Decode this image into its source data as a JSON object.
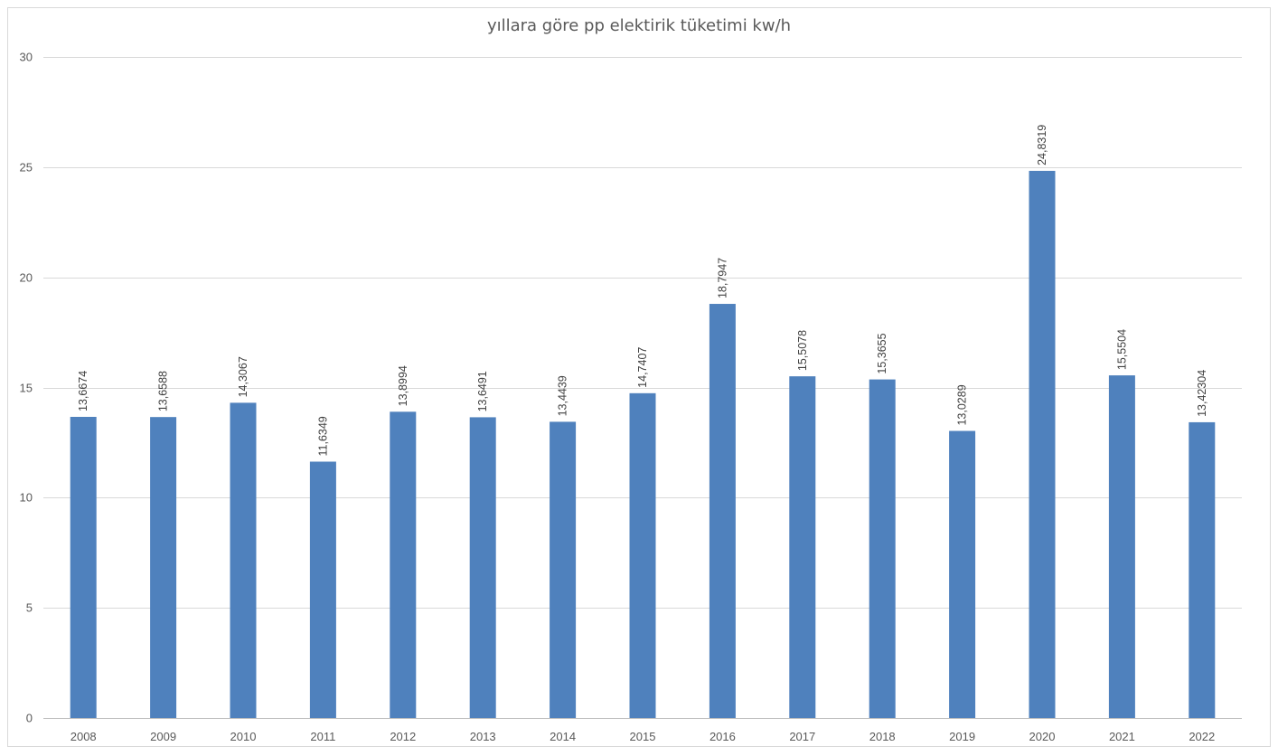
{
  "chart_data": {
    "type": "bar",
    "title": "yıllara göre pp elektirik tüketimi kw/h",
    "xlabel": "",
    "ylabel": "",
    "categories": [
      "2008",
      "2009",
      "2010",
      "2011",
      "2012",
      "2013",
      "2014",
      "2015",
      "2016",
      "2017",
      "2018",
      "2019",
      "2020",
      "2021",
      "2022"
    ],
    "values": [
      13.6674,
      13.6588,
      14.3067,
      11.6349,
      13.8994,
      13.6491,
      13.4439,
      14.7407,
      18.7947,
      15.5078,
      15.3655,
      13.0289,
      24.8319,
      15.5504,
      13.42304
    ],
    "data_labels": [
      "13,6674",
      "13,6588",
      "14,3067",
      "11,6349",
      "13,8994",
      "13,6491",
      "13,4439",
      "14,7407",
      "18,7947",
      "15,5078",
      "15,3655",
      "13,0289",
      "24,8319",
      "15,5504",
      "13,42304"
    ],
    "ylim": [
      0,
      30
    ],
    "yticks": [
      0,
      5,
      10,
      15,
      20,
      25,
      30
    ],
    "grid": true,
    "legend": "none",
    "bar_color": "#4f81bd"
  }
}
